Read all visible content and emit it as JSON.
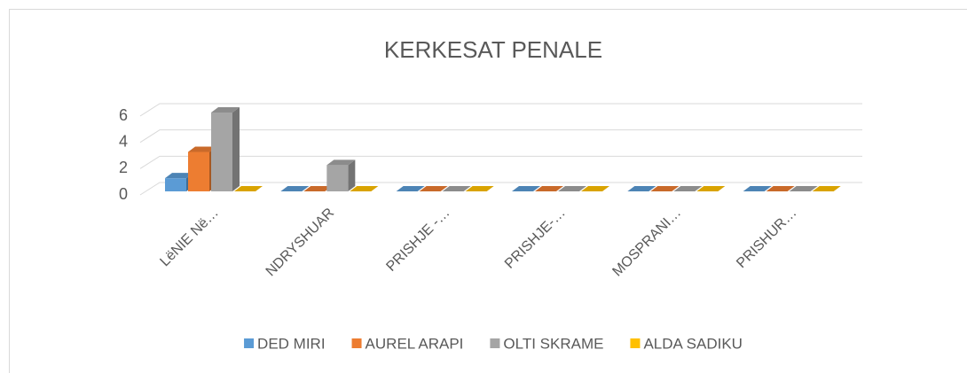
{
  "chart_data": {
    "type": "bar3d",
    "title": "KERKESAT PENALE",
    "categories": [
      "LëNIE Në…",
      "NDRYSHUAR",
      "PRISHJE -…",
      "PRISHJE-…",
      "MOSPRANI…",
      "PRISHUR…"
    ],
    "series": [
      {
        "name": "DED MIRI",
        "color": "#5b9bd5",
        "values": [
          1,
          0,
          0,
          0,
          0,
          0
        ]
      },
      {
        "name": "AUREL ARAPI",
        "color": "#ed7d31",
        "values": [
          3,
          0,
          0,
          0,
          0,
          0
        ]
      },
      {
        "name": "OLTI SKRAME",
        "color": "#a5a5a5",
        "values": [
          6,
          2,
          0,
          0,
          0,
          0
        ]
      },
      {
        "name": "ALDA SADIKU",
        "color": "#ffc000",
        "values": [
          0,
          0,
          0,
          0,
          0,
          0
        ]
      }
    ],
    "ylim": [
      0,
      6
    ],
    "yticks": [
      0,
      2,
      4,
      6
    ],
    "grid": true,
    "legend": "bottom"
  }
}
